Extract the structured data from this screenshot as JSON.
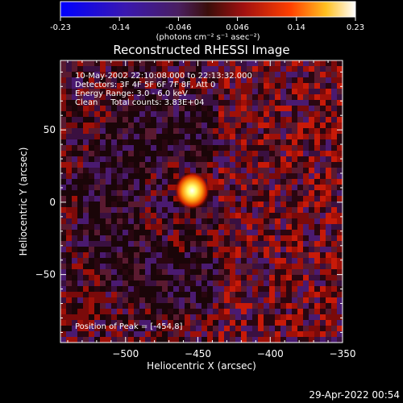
{
  "colorbar": {
    "ticks": [
      "-0.23",
      "-0.14",
      "-0.046",
      "0.046",
      "0.14",
      "0.23"
    ],
    "unit_label": "(photons cm⁻² s⁻¹ asec⁻²)",
    "range": [
      -0.23,
      0.23
    ]
  },
  "chart_data": {
    "type": "heatmap",
    "title": "Reconstructed RHESSI Image",
    "xlabel": "Heliocentric X (arcsec)",
    "ylabel": "Heliocentric Y (arcsec)",
    "xlim": [
      -545,
      -350
    ],
    "ylim": [
      -97,
      98
    ],
    "x_ticks": [
      -500,
      -450,
      -400,
      -350
    ],
    "x_tick_labels": [
      "−500",
      "−450",
      "−400",
      "−350"
    ],
    "y_ticks": [
      50,
      0,
      -50
    ],
    "y_tick_labels": [
      "50",
      "0",
      "−50"
    ],
    "peak_position": [
      -454,
      8
    ],
    "annotations": [
      "10-May-2002 22:10:08.000 to 22:13:32.000",
      "Detectors: 3F 4F 5F 6F 7F 8F, Att 0",
      "Energy Range: 3.0 - 6.0 keV",
      "Clean     Total counts: 3.83E+04"
    ],
    "peak_label": "Position of Peak = [-454,8]",
    "colormap": "blue-purple-red-yellow-white"
  },
  "footer": {
    "timestamp": "29-Apr-2022 00:54"
  }
}
